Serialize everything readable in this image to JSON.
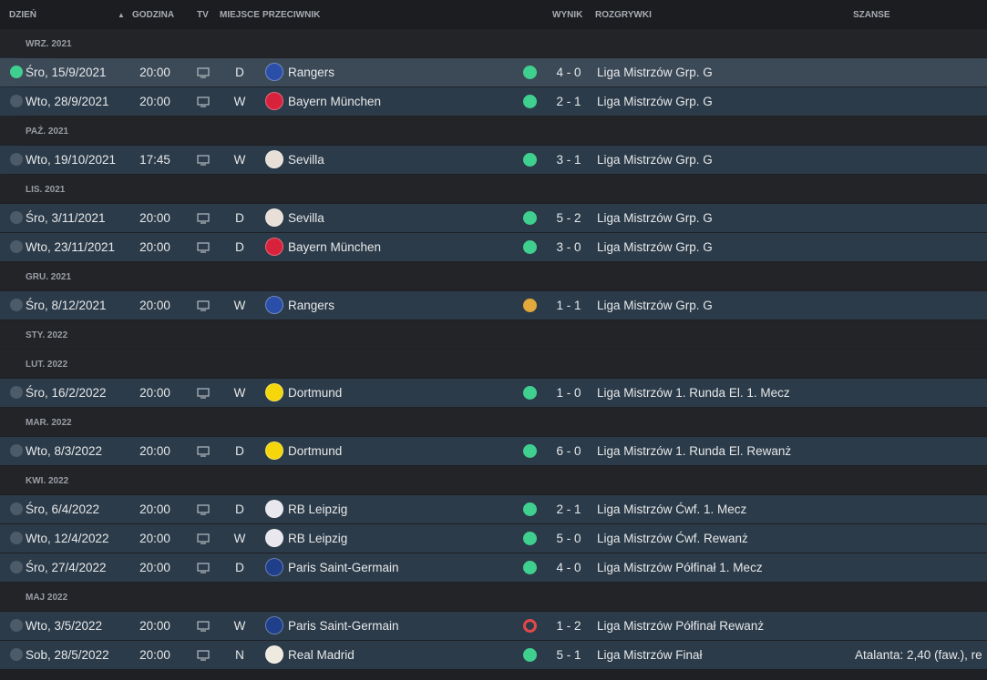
{
  "header": {
    "columns": [
      "DZIEŃ",
      "GODZINA",
      "TV",
      "MIEJSCE",
      "PRZECIWNIK",
      "WYNIK",
      "ROZGRYWKI",
      "SZANSE"
    ]
  },
  "rows": [
    {
      "month": "WRZ. 2021"
    },
    {
      "day": "Śro, 15/9/2021",
      "time": "20:00",
      "venue": "D",
      "opponent": "Rangers",
      "badge": "#2a4fa8",
      "result_color": "#3fcf8e",
      "score": "4 - 0",
      "competition": "Liga Mistrzów Grp. G",
      "selected": true
    },
    {
      "day": "Wto, 28/9/2021",
      "time": "20:00",
      "venue": "W",
      "opponent": "Bayern München",
      "badge": "#d8213a",
      "result_color": "#3fcf8e",
      "score": "2 - 1",
      "competition": "Liga Mistrzów Grp. G"
    },
    {
      "month": "PAŹ. 2021"
    },
    {
      "day": "Wto, 19/10/2021",
      "time": "17:45",
      "venue": "W",
      "opponent": "Sevilla",
      "badge": "#e8e0d8",
      "result_color": "#3fcf8e",
      "score": "3 - 1",
      "competition": "Liga Mistrzów Grp. G"
    },
    {
      "month": "LIS. 2021"
    },
    {
      "day": "Śro, 3/11/2021",
      "time": "20:00",
      "venue": "D",
      "opponent": "Sevilla",
      "badge": "#e8e0d8",
      "result_color": "#3fcf8e",
      "score": "5 - 2",
      "competition": "Liga Mistrzów Grp. G"
    },
    {
      "day": "Wto, 23/11/2021",
      "time": "20:00",
      "venue": "D",
      "opponent": "Bayern München",
      "badge": "#d8213a",
      "result_color": "#3fcf8e",
      "score": "3 - 0",
      "competition": "Liga Mistrzów Grp. G"
    },
    {
      "month": "GRU. 2021"
    },
    {
      "day": "Śro, 8/12/2021",
      "time": "20:00",
      "venue": "W",
      "opponent": "Rangers",
      "badge": "#2a4fa8",
      "result_color": "#e3a93a",
      "score": "1 - 1",
      "competition": "Liga Mistrzów Grp. G"
    },
    {
      "month": "STY. 2022"
    },
    {
      "month": "LUT. 2022"
    },
    {
      "day": "Śro, 16/2/2022",
      "time": "20:00",
      "venue": "W",
      "opponent": "Dortmund",
      "badge": "#f5d60a",
      "result_color": "#3fcf8e",
      "score": "1 - 0",
      "competition": "Liga Mistrzów 1. Runda El. 1. Mecz"
    },
    {
      "month": "MAR. 2022"
    },
    {
      "day": "Wto, 8/3/2022",
      "time": "20:00",
      "venue": "D",
      "opponent": "Dortmund",
      "badge": "#f5d60a",
      "result_color": "#3fcf8e",
      "score": "6 - 0",
      "competition": "Liga Mistrzów 1. Runda El. Rewanż"
    },
    {
      "month": "KWI. 2022"
    },
    {
      "day": "Śro, 6/4/2022",
      "time": "20:00",
      "venue": "D",
      "opponent": "RB Leipzig",
      "badge": "#e8e8ee",
      "result_color": "#3fcf8e",
      "score": "2 - 1",
      "competition": "Liga Mistrzów Ćwf. 1. Mecz"
    },
    {
      "day": "Wto, 12/4/2022",
      "time": "20:00",
      "venue": "W",
      "opponent": "RB Leipzig",
      "badge": "#e8e8ee",
      "result_color": "#3fcf8e",
      "score": "5 - 0",
      "competition": "Liga Mistrzów Ćwf. Rewanż"
    },
    {
      "day": "Śro, 27/4/2022",
      "time": "20:00",
      "venue": "D",
      "opponent": "Paris Saint-Germain",
      "badge": "#1f3f8a",
      "result_color": "#3fcf8e",
      "score": "4 - 0",
      "competition": "Liga Mistrzów Półfinał 1. Mecz"
    },
    {
      "month": "MAJ 2022"
    },
    {
      "day": "Wto, 3/5/2022",
      "time": "20:00",
      "venue": "W",
      "opponent": "Paris Saint-Germain",
      "badge": "#1f3f8a",
      "result_color": "#e2484a",
      "score": "1 - 2",
      "competition": "Liga Mistrzów Półfinał Rewanż"
    },
    {
      "day": "Sob, 28/5/2022",
      "time": "20:00",
      "venue": "N",
      "opponent": "Real Madrid",
      "badge": "#efeae0",
      "result_color": "#3fcf8e",
      "score": "5 - 1",
      "competition": "Liga Mistrzów Finał",
      "chances": "Atalanta: 2,40 (faw.),  re"
    }
  ]
}
